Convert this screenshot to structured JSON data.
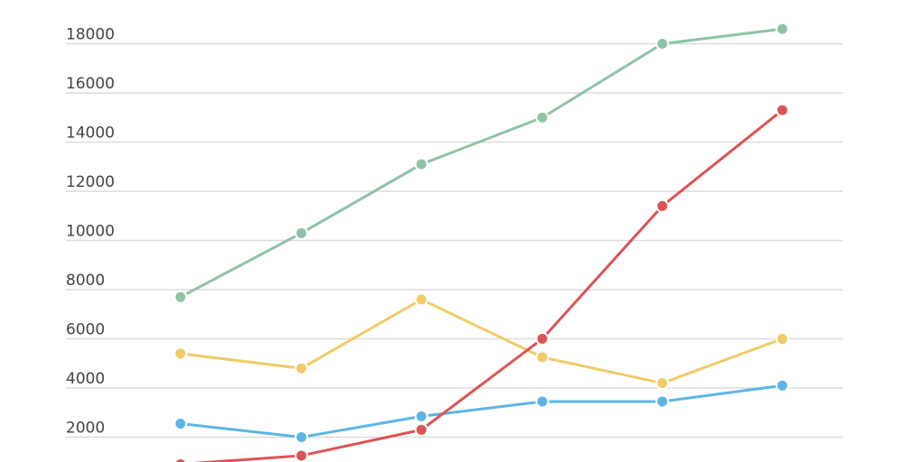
{
  "chart_data": {
    "type": "line",
    "title": "",
    "xlabel": "",
    "ylabel": "",
    "ylim": [
      0,
      18000
    ],
    "yticks": [
      "2000",
      "4000",
      "6000",
      "8000",
      "10000",
      "12000",
      "14000",
      "16000",
      "18000"
    ],
    "grid": "horizontal",
    "series": [
      {
        "color": "#8ec4a5",
        "values": [
          7700,
          10300,
          13100,
          15000,
          18000,
          18600
        ]
      },
      {
        "color": "#f0cb67",
        "values": [
          5400,
          4800,
          7600,
          5250,
          4200,
          6000
        ]
      },
      {
        "color": "#5cb5e5",
        "values": [
          2550,
          2000,
          2850,
          3450,
          3450,
          4100
        ]
      },
      {
        "color": "#dd5254",
        "values": [
          900,
          1250,
          2300,
          6000,
          11400,
          15300
        ]
      }
    ]
  }
}
